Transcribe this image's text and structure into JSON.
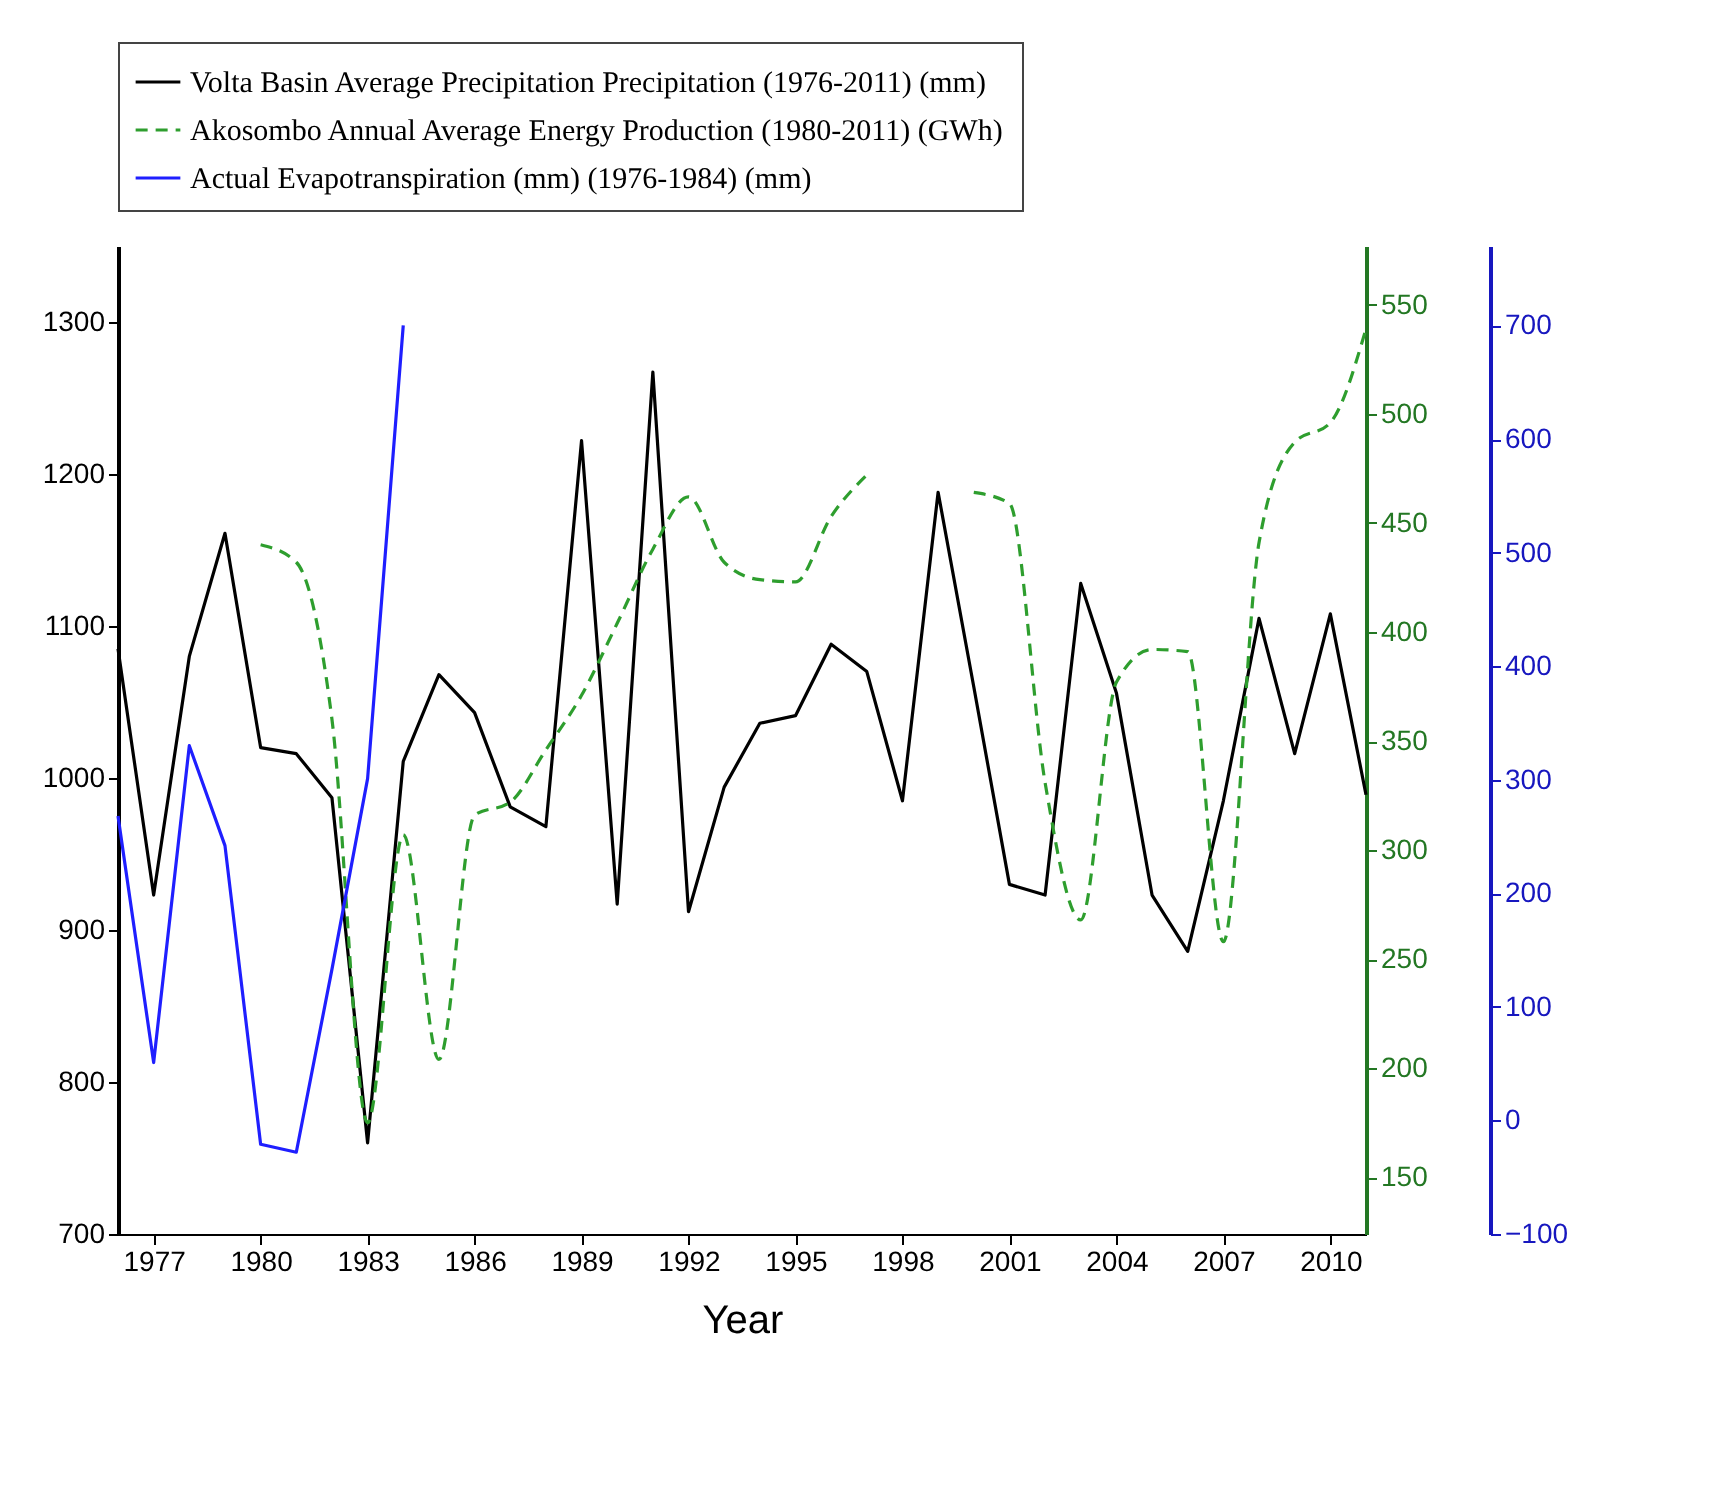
{
  "chart_data": {
    "type": "line",
    "xlabel": "Year",
    "xlim": [
      1976,
      2011
    ],
    "xticks": [
      1977,
      1980,
      1983,
      1986,
      1989,
      1992,
      1995,
      1998,
      2001,
      2004,
      2007,
      2010
    ],
    "ylim": [
      700,
      1350
    ],
    "yticks": [
      700,
      800,
      900,
      1000,
      1100,
      1200,
      1300
    ],
    "y2lim": [
      124,
      577
    ],
    "y2ticks": [
      150,
      200,
      250,
      300,
      350,
      400,
      450,
      500,
      550
    ],
    "y3lim": [
      -100,
      770
    ],
    "y3ticks": [
      -100,
      0,
      100,
      200,
      300,
      400,
      500,
      600,
      700
    ],
    "grid": false,
    "legend": "top",
    "marker": "none",
    "series": [
      {
        "name": "Volta Basin Average Precipitation Precipitation (1976-2011) (mm)",
        "color": "#000000",
        "line_style": "solid",
        "x": [
          1976,
          1977,
          1978,
          1979,
          1980,
          1981,
          1982,
          1983,
          1984,
          1985,
          1986,
          1987,
          1988,
          1989,
          1990,
          1991,
          1992,
          1993,
          1994,
          1995,
          1996,
          1997,
          1998,
          1999,
          2000,
          2001,
          2002,
          2003,
          2004,
          2005,
          2006,
          2007,
          2008,
          2009,
          2010,
          2011
        ],
        "values": [
          1085,
          923,
          1080,
          1161,
          1020,
          1016,
          987,
          760,
          1011,
          1068,
          1043,
          981,
          968,
          1222,
          917,
          1267,
          912,
          994,
          1036,
          1041,
          1088,
          1070,
          985,
          1188,
          1060,
          930,
          923,
          1128,
          1056,
          923,
          886,
          985,
          1105,
          1016,
          1108,
          989
        ]
      },
      {
        "name": "Akosombo Annual Average Energy Production (1980-2011) (GWh)",
        "color": "#2e9e2e",
        "line_style": "dashed",
        "axis": "y2",
        "x": [
          1980,
          1981,
          1982,
          1983,
          1984,
          1985,
          1986,
          1987,
          1988,
          1989,
          1990,
          1991,
          1992,
          1993,
          1994,
          1995,
          1996,
          1997,
          1998,
          1999,
          2000,
          2001,
          2002,
          2003,
          2004,
          2005,
          2006,
          2007,
          2008,
          2009,
          2010,
          2011
        ],
        "values": [
          440,
          432,
          360,
          175,
          307,
          204,
          316,
          322,
          346,
          371,
          404,
          438,
          462,
          432,
          424,
          423,
          453,
          472,
          null,
          null,
          464,
          459,
          331,
          268,
          377,
          392,
          391,
          258,
          441,
          487,
          496,
          539
        ]
      },
      {
        "name": "Actual Evapotranspiration (mm) (1976-1984) (mm)",
        "color": "#1f1fff",
        "line_style": "solid",
        "axis": "y3",
        "x": [
          1976,
          1977,
          1978,
          1979,
          1980,
          1981,
          1982,
          1983,
          1984
        ],
        "values": [
          268,
          51,
          330,
          242,
          -21,
          -28,
          133,
          301,
          700
        ]
      }
    ]
  }
}
